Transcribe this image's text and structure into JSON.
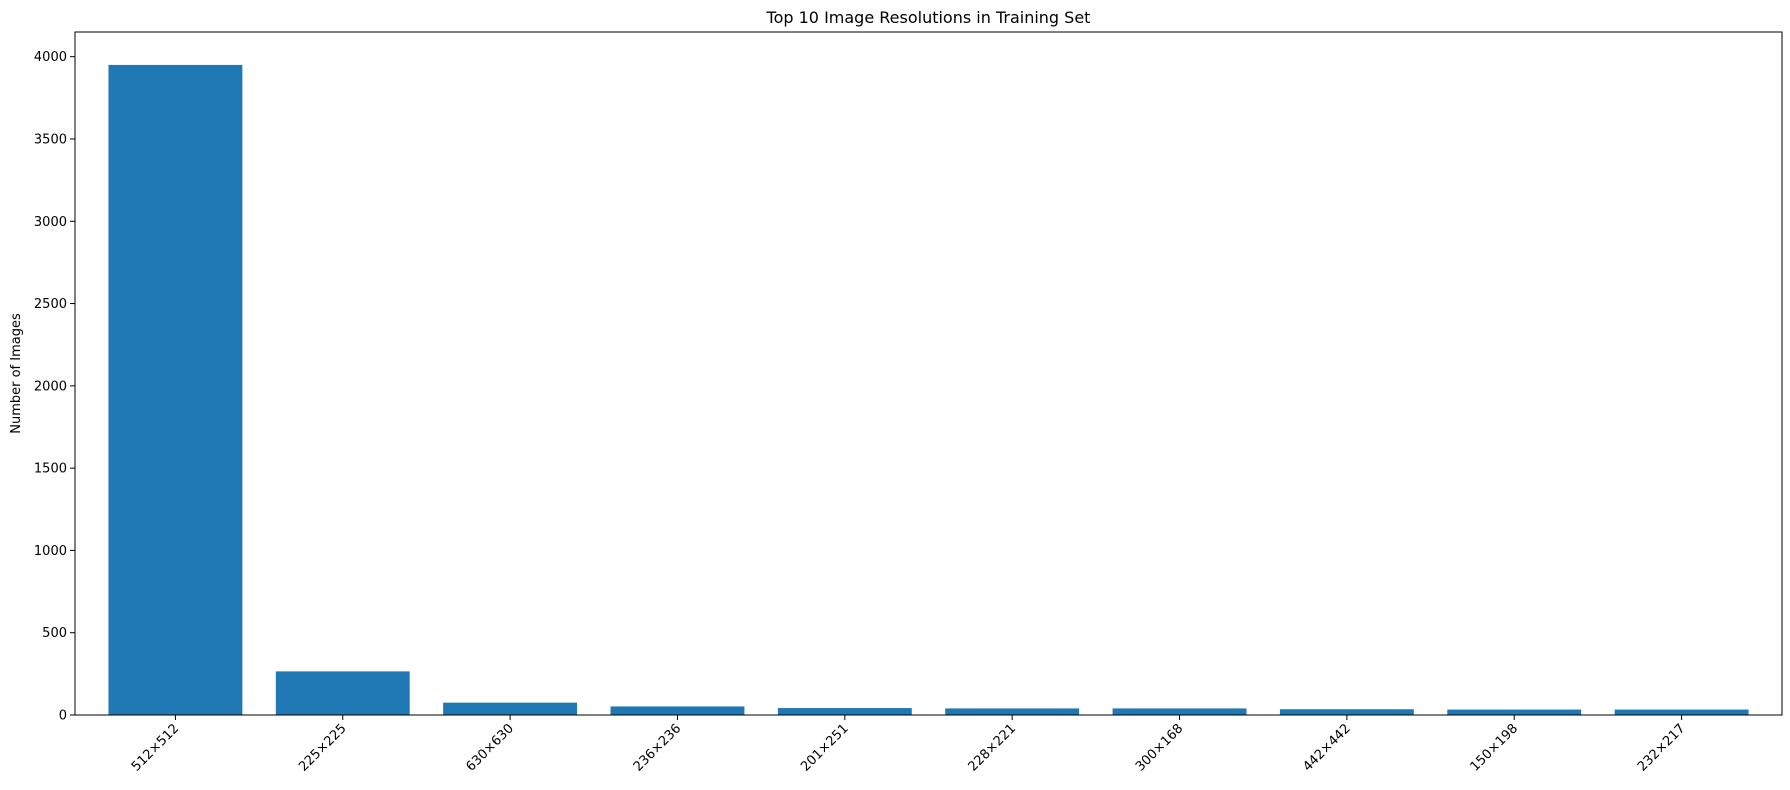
{
  "chart_data": {
    "type": "bar",
    "title": "Top 10 Image Resolutions in Training Set",
    "xlabel": "",
    "ylabel": "Number of Images",
    "categories": [
      "512×512",
      "225×225",
      "630×630",
      "236×236",
      "201×251",
      "228×221",
      "300×168",
      "442×442",
      "150×198",
      "232×217"
    ],
    "values": [
      3950,
      265,
      75,
      52,
      42,
      40,
      40,
      35,
      33,
      33
    ],
    "ylim": [
      0,
      4150
    ],
    "yticks": [
      0,
      500,
      1000,
      1500,
      2000,
      2500,
      3000,
      3500,
      4000
    ],
    "grid": false,
    "bar_color": "#1f77b4",
    "x_tick_rotation_deg": 45
  }
}
